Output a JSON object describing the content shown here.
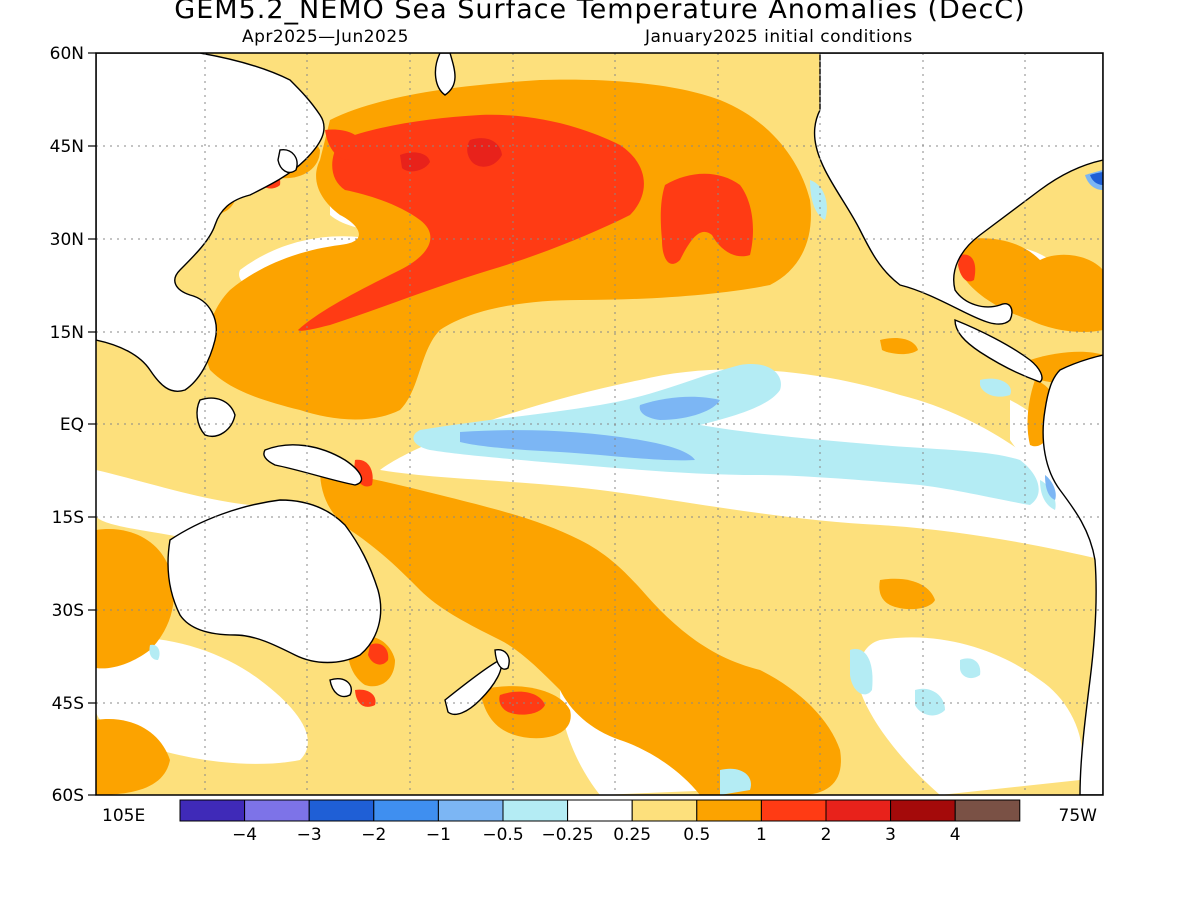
{
  "title": "GEM5.2_NEMO Sea Surface Temperature Anomalies (DecC)",
  "period": "Apr2025—Jun2025",
  "init": "January2025 initial conditions",
  "lat_labels": [
    "60N",
    "45N",
    "30N",
    "15N",
    "EQ",
    "15S",
    "30S",
    "45S",
    "60S"
  ],
  "lon_labels": {
    "west": "105E",
    "east": "75W"
  },
  "colorbar": {
    "labels": [
      "−4",
      "−3",
      "−2",
      "−1",
      "−0.5",
      "−0.25",
      "0.25",
      "0.5",
      "1",
      "2",
      "3",
      "4"
    ],
    "colors": [
      "#3f2ab8",
      "#7d73e8",
      "#1f5fd6",
      "#3f8ff0",
      "#7cb6f4",
      "#b4ecf4",
      "#ffffff",
      "#fde07c",
      "#fca300",
      "#ff3b14",
      "#e8221b",
      "#a40a0a",
      "#7a5145"
    ]
  },
  "palette": {
    "warm_05": "#fde07c",
    "warm_1": "#fca300",
    "warm_2": "#ff3b14",
    "warm_3": "#e8221b",
    "cool_025": "#b4ecf4",
    "cool_05": "#7cb6f4",
    "cool_1": "#3f8ff0"
  }
}
